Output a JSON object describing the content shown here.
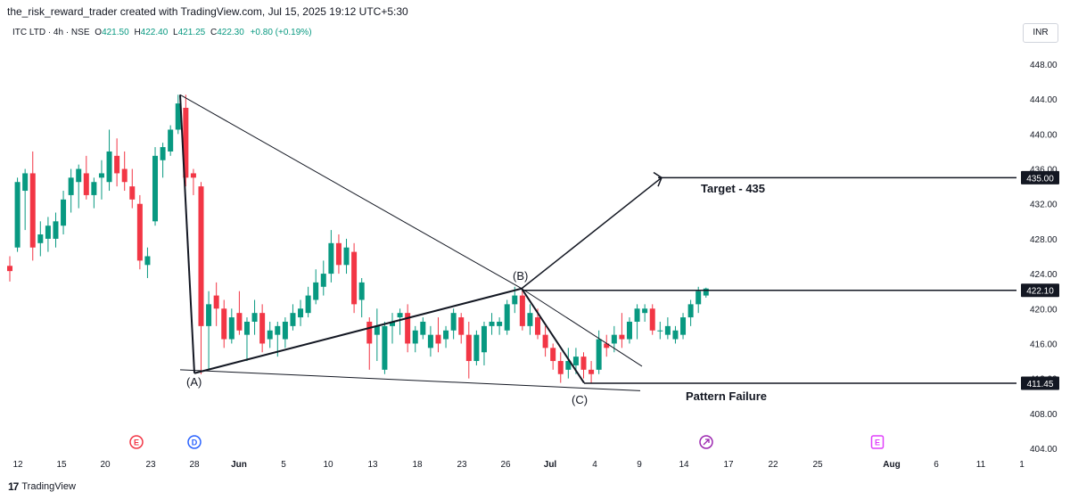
{
  "header": {
    "caption": "the_risk_reward_trader created with TradingView.com, Jul 15, 2025 19:12 UTC+5:30",
    "symbol": "ITC LTD · 4h · NSE",
    "open_label": "O",
    "open": "421.50",
    "high_label": "H",
    "high": "422.40",
    "low_label": "L",
    "low": "421.25",
    "close_label": "C",
    "close": "422.30",
    "change": "+0.80 (+0.19%)",
    "currency": "INR"
  },
  "footer": {
    "brand": "TradingView"
  },
  "colors": {
    "up": "#089981",
    "down": "#f23645",
    "line": "#131722",
    "axis_text": "#131722",
    "earnings": "#f23645",
    "dividend": "#2962ff",
    "split": "#9c27b0",
    "future_e": "#e040fb"
  },
  "chart_data": {
    "type": "candlestick",
    "title": "",
    "x_tick_labels": [
      "12",
      "15",
      "20",
      "23",
      "28",
      "Jun",
      "5",
      "10",
      "13",
      "18",
      "23",
      "26",
      "Jul",
      "4",
      "9",
      "14",
      "17",
      "22",
      "25",
      "Aug",
      "6",
      "11",
      "1"
    ],
    "y_ticks": [
      448,
      444,
      440,
      436,
      432,
      428,
      424,
      420,
      416,
      412,
      408,
      404
    ],
    "ylim": [
      403.5,
      450.5
    ],
    "price_labels": [
      {
        "value": 435.0,
        "text": "435.00"
      },
      {
        "value": 422.1,
        "text": "422.10"
      },
      {
        "value": 411.45,
        "text": "411.45"
      }
    ],
    "candles": [
      {
        "o": 424.9,
        "h": 426.0,
        "l": 423.1,
        "c": 424.3
      },
      {
        "o": 427.0,
        "h": 435.0,
        "l": 426.5,
        "c": 434.5
      },
      {
        "o": 433.5,
        "h": 436.0,
        "l": 429.0,
        "c": 435.5
      },
      {
        "o": 435.5,
        "h": 438.0,
        "l": 425.5,
        "c": 427.0
      },
      {
        "o": 427.5,
        "h": 430.0,
        "l": 426.0,
        "c": 428.5
      },
      {
        "o": 428.0,
        "h": 430.5,
        "l": 426.5,
        "c": 429.5
      },
      {
        "o": 428.0,
        "h": 431.0,
        "l": 427.0,
        "c": 430.0
      },
      {
        "o": 429.5,
        "h": 433.5,
        "l": 428.5,
        "c": 432.5
      },
      {
        "o": 433.0,
        "h": 436.0,
        "l": 431.0,
        "c": 435.0
      },
      {
        "o": 434.5,
        "h": 436.5,
        "l": 431.5,
        "c": 436.0
      },
      {
        "o": 435.5,
        "h": 437.5,
        "l": 432.5,
        "c": 433.0
      },
      {
        "o": 433.0,
        "h": 435.0,
        "l": 431.5,
        "c": 434.5
      },
      {
        "o": 435.0,
        "h": 437.0,
        "l": 432.5,
        "c": 435.5
      },
      {
        "o": 434.5,
        "h": 440.5,
        "l": 433.5,
        "c": 438.0
      },
      {
        "o": 437.5,
        "h": 439.5,
        "l": 434.0,
        "c": 435.5
      },
      {
        "o": 436.0,
        "h": 438.0,
        "l": 433.5,
        "c": 434.5
      },
      {
        "o": 434.0,
        "h": 436.0,
        "l": 431.5,
        "c": 432.5
      },
      {
        "o": 432.0,
        "h": 433.0,
        "l": 424.5,
        "c": 425.5
      },
      {
        "o": 425.0,
        "h": 427.0,
        "l": 423.5,
        "c": 426.0
      },
      {
        "o": 430.0,
        "h": 438.5,
        "l": 429.5,
        "c": 437.5
      },
      {
        "o": 437.0,
        "h": 439.0,
        "l": 435.0,
        "c": 438.5
      },
      {
        "o": 438.0,
        "h": 441.0,
        "l": 437.5,
        "c": 440.5
      },
      {
        "o": 440.5,
        "h": 444.5,
        "l": 440.0,
        "c": 443.5
      },
      {
        "o": 443.0,
        "h": 444.5,
        "l": 434.0,
        "c": 435.0
      },
      {
        "o": 435.5,
        "h": 436.0,
        "l": 433.0,
        "c": 435.0
      },
      {
        "o": 434.0,
        "h": 434.5,
        "l": 412.5,
        "c": 418.0
      },
      {
        "o": 418.0,
        "h": 422.0,
        "l": 413.0,
        "c": 420.5
      },
      {
        "o": 421.5,
        "h": 423.0,
        "l": 418.0,
        "c": 420.0
      },
      {
        "o": 420.0,
        "h": 421.0,
        "l": 415.5,
        "c": 416.5
      },
      {
        "o": 416.5,
        "h": 420.0,
        "l": 416.0,
        "c": 419.0
      },
      {
        "o": 419.5,
        "h": 422.0,
        "l": 417.0,
        "c": 417.5
      },
      {
        "o": 417.0,
        "h": 419.0,
        "l": 414.0,
        "c": 418.5
      },
      {
        "o": 418.5,
        "h": 421.0,
        "l": 417.0,
        "c": 419.5
      },
      {
        "o": 419.5,
        "h": 420.5,
        "l": 415.0,
        "c": 416.0
      },
      {
        "o": 416.5,
        "h": 418.5,
        "l": 415.5,
        "c": 417.5
      },
      {
        "o": 417.0,
        "h": 418.5,
        "l": 414.5,
        "c": 418.0
      },
      {
        "o": 416.5,
        "h": 419.0,
        "l": 415.5,
        "c": 418.5
      },
      {
        "o": 418.0,
        "h": 420.5,
        "l": 417.5,
        "c": 419.5
      },
      {
        "o": 419.0,
        "h": 421.0,
        "l": 418.0,
        "c": 420.0
      },
      {
        "o": 419.5,
        "h": 422.5,
        "l": 419.0,
        "c": 421.5
      },
      {
        "o": 421.0,
        "h": 424.5,
        "l": 420.5,
        "c": 423.0
      },
      {
        "o": 422.5,
        "h": 425.5,
        "l": 421.5,
        "c": 424.0
      },
      {
        "o": 424.0,
        "h": 429.0,
        "l": 423.0,
        "c": 427.5
      },
      {
        "o": 427.5,
        "h": 428.5,
        "l": 424.0,
        "c": 425.0
      },
      {
        "o": 425.0,
        "h": 428.0,
        "l": 424.0,
        "c": 427.0
      },
      {
        "o": 426.5,
        "h": 427.5,
        "l": 419.5,
        "c": 420.5
      },
      {
        "o": 421.0,
        "h": 423.5,
        "l": 419.0,
        "c": 423.0
      },
      {
        "o": 418.5,
        "h": 419.0,
        "l": 413.0,
        "c": 416.0
      },
      {
        "o": 417.0,
        "h": 420.0,
        "l": 414.0,
        "c": 418.0
      },
      {
        "o": 413.0,
        "h": 418.5,
        "l": 412.5,
        "c": 418.0
      },
      {
        "o": 418.0,
        "h": 419.5,
        "l": 416.0,
        "c": 418.5
      },
      {
        "o": 419.0,
        "h": 420.0,
        "l": 417.0,
        "c": 419.5
      },
      {
        "o": 419.5,
        "h": 420.5,
        "l": 415.0,
        "c": 416.0
      },
      {
        "o": 416.0,
        "h": 418.0,
        "l": 415.0,
        "c": 417.5
      },
      {
        "o": 417.0,
        "h": 419.0,
        "l": 416.5,
        "c": 418.5
      },
      {
        "o": 415.5,
        "h": 418.0,
        "l": 414.5,
        "c": 417.0
      },
      {
        "o": 417.0,
        "h": 419.0,
        "l": 415.0,
        "c": 416.0
      },
      {
        "o": 416.5,
        "h": 418.0,
        "l": 415.5,
        "c": 417.5
      },
      {
        "o": 417.5,
        "h": 420.0,
        "l": 416.5,
        "c": 419.5
      },
      {
        "o": 419.0,
        "h": 419.5,
        "l": 416.0,
        "c": 417.0
      },
      {
        "o": 417.0,
        "h": 418.5,
        "l": 412.0,
        "c": 414.0
      },
      {
        "o": 414.0,
        "h": 417.5,
        "l": 413.5,
        "c": 417.0
      },
      {
        "o": 415.0,
        "h": 418.5,
        "l": 413.5,
        "c": 418.0
      },
      {
        "o": 418.0,
        "h": 419.5,
        "l": 417.0,
        "c": 418.5
      },
      {
        "o": 418.0,
        "h": 419.0,
        "l": 417.0,
        "c": 418.5
      },
      {
        "o": 417.5,
        "h": 421.0,
        "l": 417.0,
        "c": 420.5
      },
      {
        "o": 420.5,
        "h": 422.5,
        "l": 419.5,
        "c": 421.5
      },
      {
        "o": 421.5,
        "h": 422.0,
        "l": 417.5,
        "c": 418.0
      },
      {
        "o": 418.0,
        "h": 420.5,
        "l": 417.0,
        "c": 419.5
      },
      {
        "o": 419.0,
        "h": 420.0,
        "l": 416.5,
        "c": 417.0
      },
      {
        "o": 417.0,
        "h": 418.0,
        "l": 414.5,
        "c": 415.5
      },
      {
        "o": 415.5,
        "h": 416.0,
        "l": 413.0,
        "c": 414.0
      },
      {
        "o": 414.0,
        "h": 415.0,
        "l": 411.5,
        "c": 412.5
      },
      {
        "o": 413.0,
        "h": 415.5,
        "l": 412.0,
        "c": 414.0
      },
      {
        "o": 413.5,
        "h": 415.5,
        "l": 412.5,
        "c": 414.5
      },
      {
        "o": 414.5,
        "h": 415.0,
        "l": 412.0,
        "c": 413.0
      },
      {
        "o": 413.0,
        "h": 414.0,
        "l": 411.5,
        "c": 412.5
      },
      {
        "o": 413.0,
        "h": 417.5,
        "l": 412.5,
        "c": 416.5
      },
      {
        "o": 416.0,
        "h": 417.0,
        "l": 414.5,
        "c": 415.5
      },
      {
        "o": 416.0,
        "h": 418.0,
        "l": 415.0,
        "c": 417.0
      },
      {
        "o": 417.0,
        "h": 419.5,
        "l": 415.5,
        "c": 416.5
      },
      {
        "o": 416.5,
        "h": 419.0,
        "l": 416.0,
        "c": 418.5
      },
      {
        "o": 418.5,
        "h": 420.5,
        "l": 416.5,
        "c": 420.0
      },
      {
        "o": 419.5,
        "h": 420.5,
        "l": 418.5,
        "c": 420.0
      },
      {
        "o": 420.0,
        "h": 420.5,
        "l": 417.0,
        "c": 417.5
      },
      {
        "o": 417.5,
        "h": 418.5,
        "l": 416.5,
        "c": 417.5
      },
      {
        "o": 417.0,
        "h": 419.0,
        "l": 416.5,
        "c": 418.0
      },
      {
        "o": 416.5,
        "h": 418.0,
        "l": 416.0,
        "c": 417.5
      },
      {
        "o": 417.0,
        "h": 419.5,
        "l": 416.5,
        "c": 419.0
      },
      {
        "o": 419.0,
        "h": 421.0,
        "l": 418.0,
        "c": 420.5
      },
      {
        "o": 420.5,
        "h": 422.5,
        "l": 419.5,
        "c": 422.0
      },
      {
        "o": 421.5,
        "h": 422.4,
        "l": 421.25,
        "c": 422.3
      }
    ],
    "annotations": {
      "labels": [
        {
          "id": "A",
          "text": "(A)"
        },
        {
          "id": "B",
          "text": "(B)"
        },
        {
          "id": "C",
          "text": "(C)"
        },
        {
          "id": "target",
          "text": "Target - 435"
        },
        {
          "id": "failure",
          "text": "Pattern Failure"
        }
      ]
    },
    "event_markers": [
      {
        "label": "E",
        "type": "earnings"
      },
      {
        "label": "D",
        "type": "dividend"
      },
      {
        "label": "",
        "type": "split"
      },
      {
        "label": "E",
        "type": "future-earnings"
      }
    ]
  }
}
